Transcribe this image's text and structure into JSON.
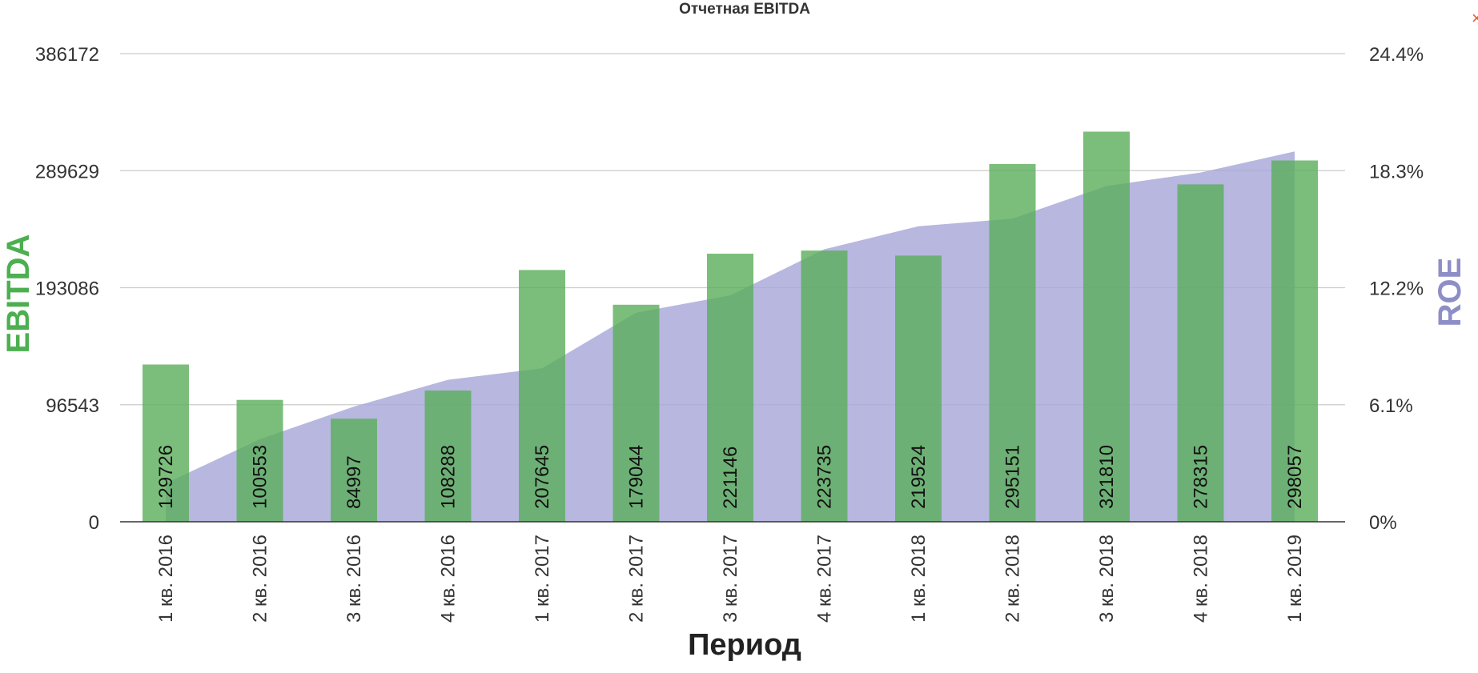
{
  "close_glyph": "×",
  "colors": {
    "ebitda": "#5aae5a",
    "roe": "#a7a7d9",
    "ebitda_axis_label": "#4caf50",
    "roe_axis_label": "#8e8ec7",
    "grid": "#cccccc",
    "axis_line": "#333333"
  },
  "chart_data": {
    "type": "bar",
    "title": "Отчетная EBITDA",
    "xlabel": "Период",
    "ylabel": "EBITDA",
    "y2label": "ROE",
    "categories": [
      "1 кв. 2016",
      "2 кв. 2016",
      "3 кв. 2016",
      "4 кв. 2016",
      "1 кв. 2017",
      "2 кв. 2017",
      "3 кв. 2017",
      "4 кв. 2017",
      "1 кв. 2018",
      "2 кв. 2018",
      "3 кв. 2018",
      "4 кв. 2018",
      "1 кв. 2019"
    ],
    "series": [
      {
        "name": "EBITDA",
        "type": "bar",
        "axis": "left",
        "values": [
          129726,
          100553,
          84997,
          108288,
          207645,
          179044,
          221146,
          223735,
          219524,
          295151,
          321810,
          278315,
          298057
        ]
      },
      {
        "name": "ROE",
        "type": "area",
        "axis": "right",
        "values": [
          2.0,
          4.3,
          6.0,
          7.4,
          8.0,
          10.9,
          11.8,
          14.2,
          15.4,
          15.8,
          17.5,
          18.2,
          19.3
        ]
      }
    ],
    "ylim": [
      0,
      386172
    ],
    "yticks": [
      "0",
      "96543",
      "193086",
      "289629",
      "386172"
    ],
    "y2lim": [
      0,
      24.4
    ],
    "y2ticks": [
      "0%",
      "6.1%",
      "12.2%",
      "18.3%",
      "24.4%"
    ],
    "grid": true,
    "legend": "none"
  }
}
